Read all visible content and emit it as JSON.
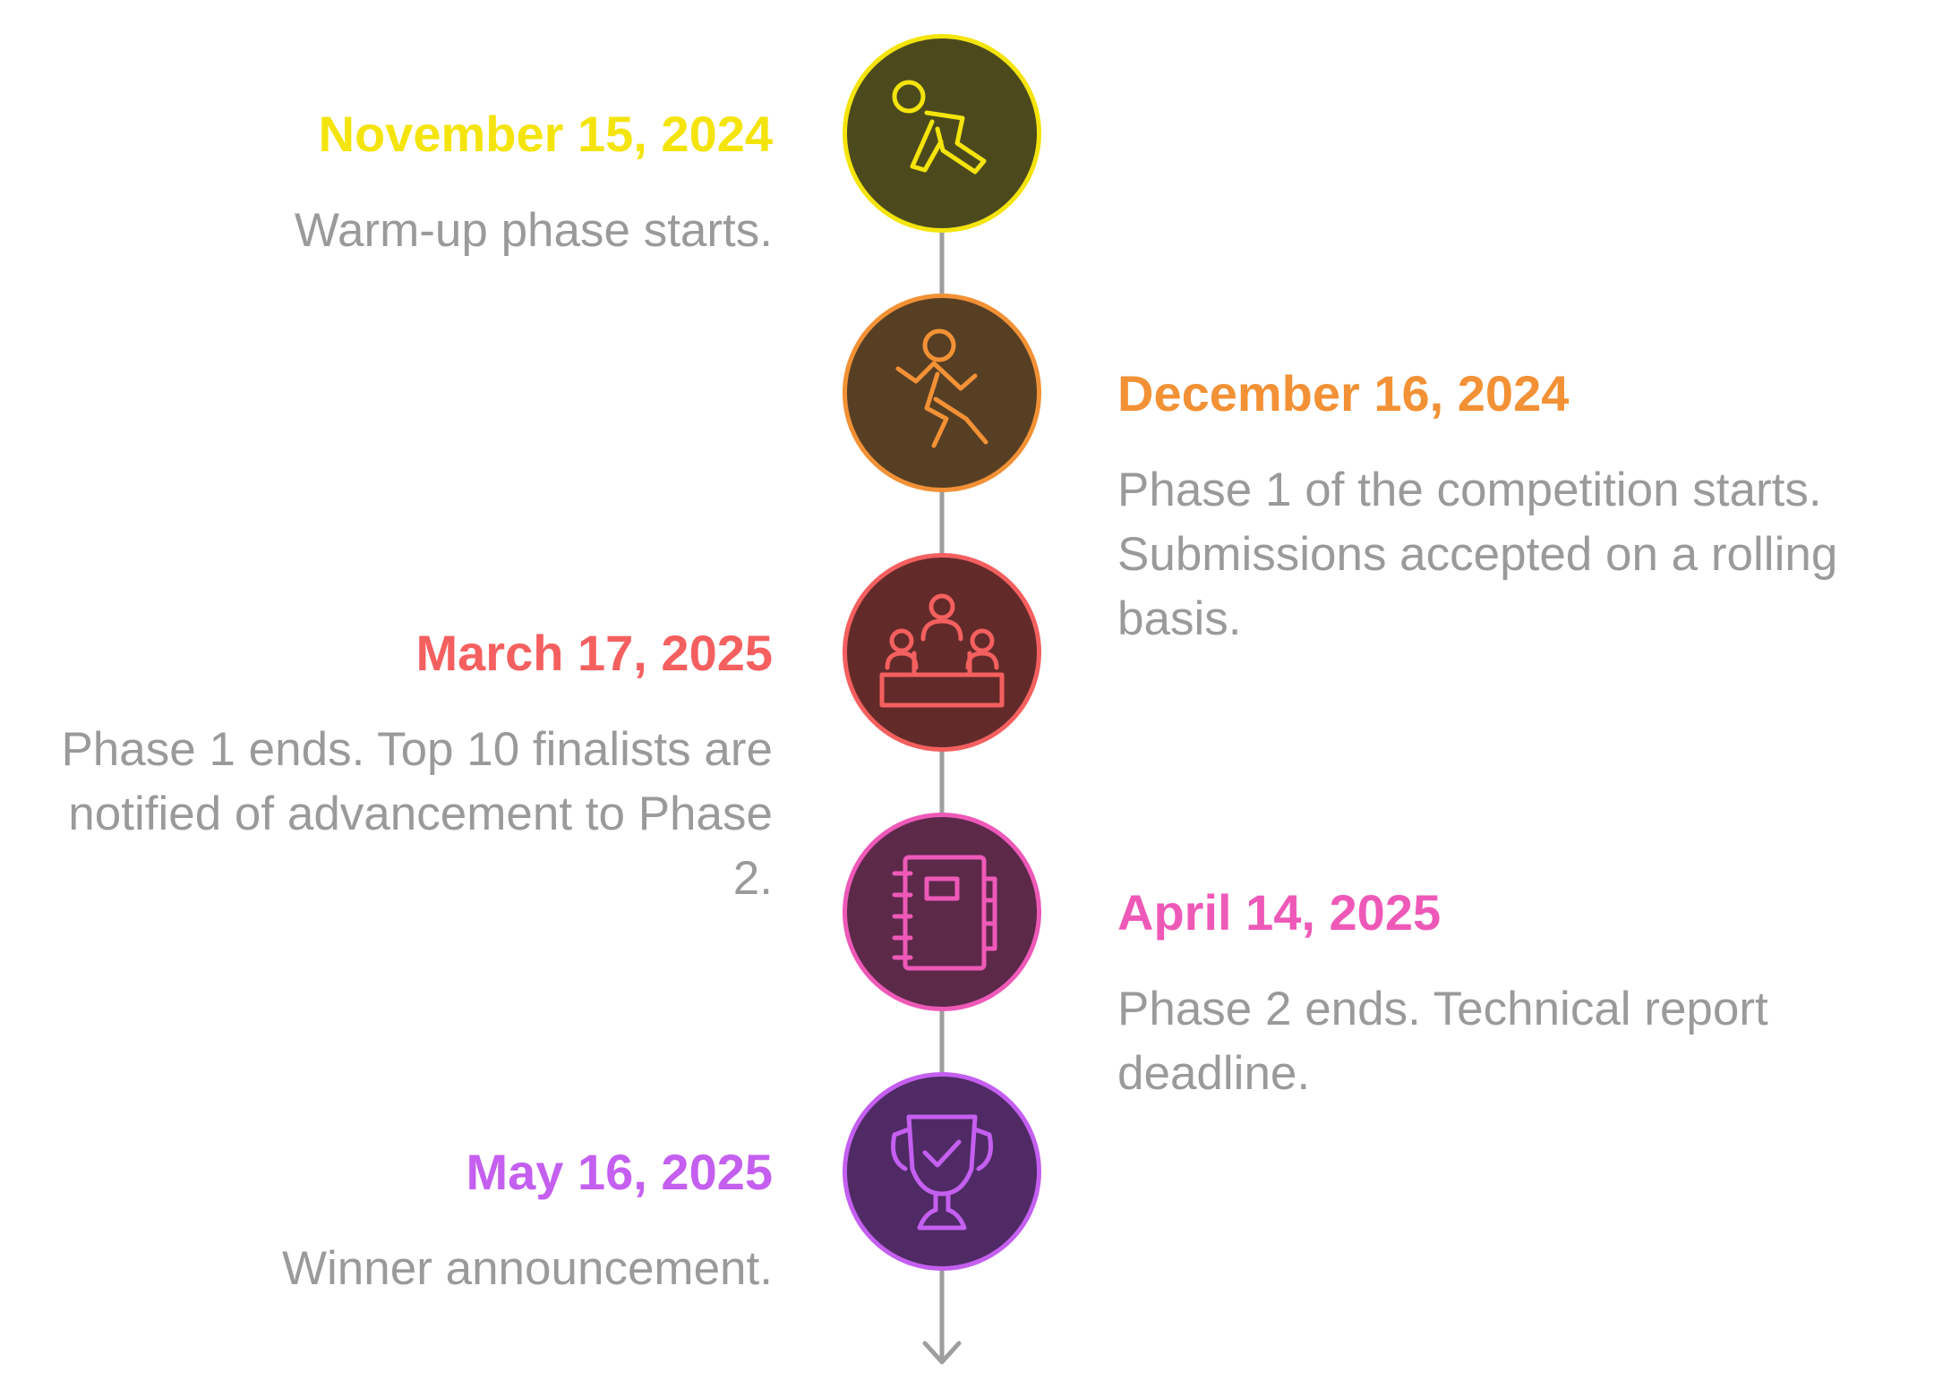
{
  "colors": {
    "line": "#9e9e9e",
    "description": "#9a9a9a"
  },
  "events": [
    {
      "date": "November 15, 2024",
      "description": "Warm-up phase starts.",
      "side": "left",
      "color": "#f4e40c",
      "fill": "#4c4a1d",
      "icon": "crouching-start-icon"
    },
    {
      "date": "December 16, 2024",
      "description": "Phase 1 of the competition starts. Submissions accepted on a rolling basis.",
      "side": "right",
      "color": "#f29135",
      "fill": "#573f24",
      "icon": "running-person-icon"
    },
    {
      "date": "March 17, 2025",
      "description": "Phase 1 ends. Top 10 finalists are notified of advancement to Phase 2.",
      "side": "left",
      "color": "#f4605f",
      "fill": "#632a2a",
      "icon": "podium-icon"
    },
    {
      "date": "April 14, 2025",
      "description": "Phase 2 ends. Technical report deadline.",
      "side": "right",
      "color": "#ee59b8",
      "fill": "#5c2949",
      "icon": "notebook-icon"
    },
    {
      "date": "May 16, 2025",
      "description": "Winner announcement.",
      "side": "left",
      "color": "#c45ff0",
      "fill": "#4f2a64",
      "icon": "trophy-icon"
    }
  ]
}
